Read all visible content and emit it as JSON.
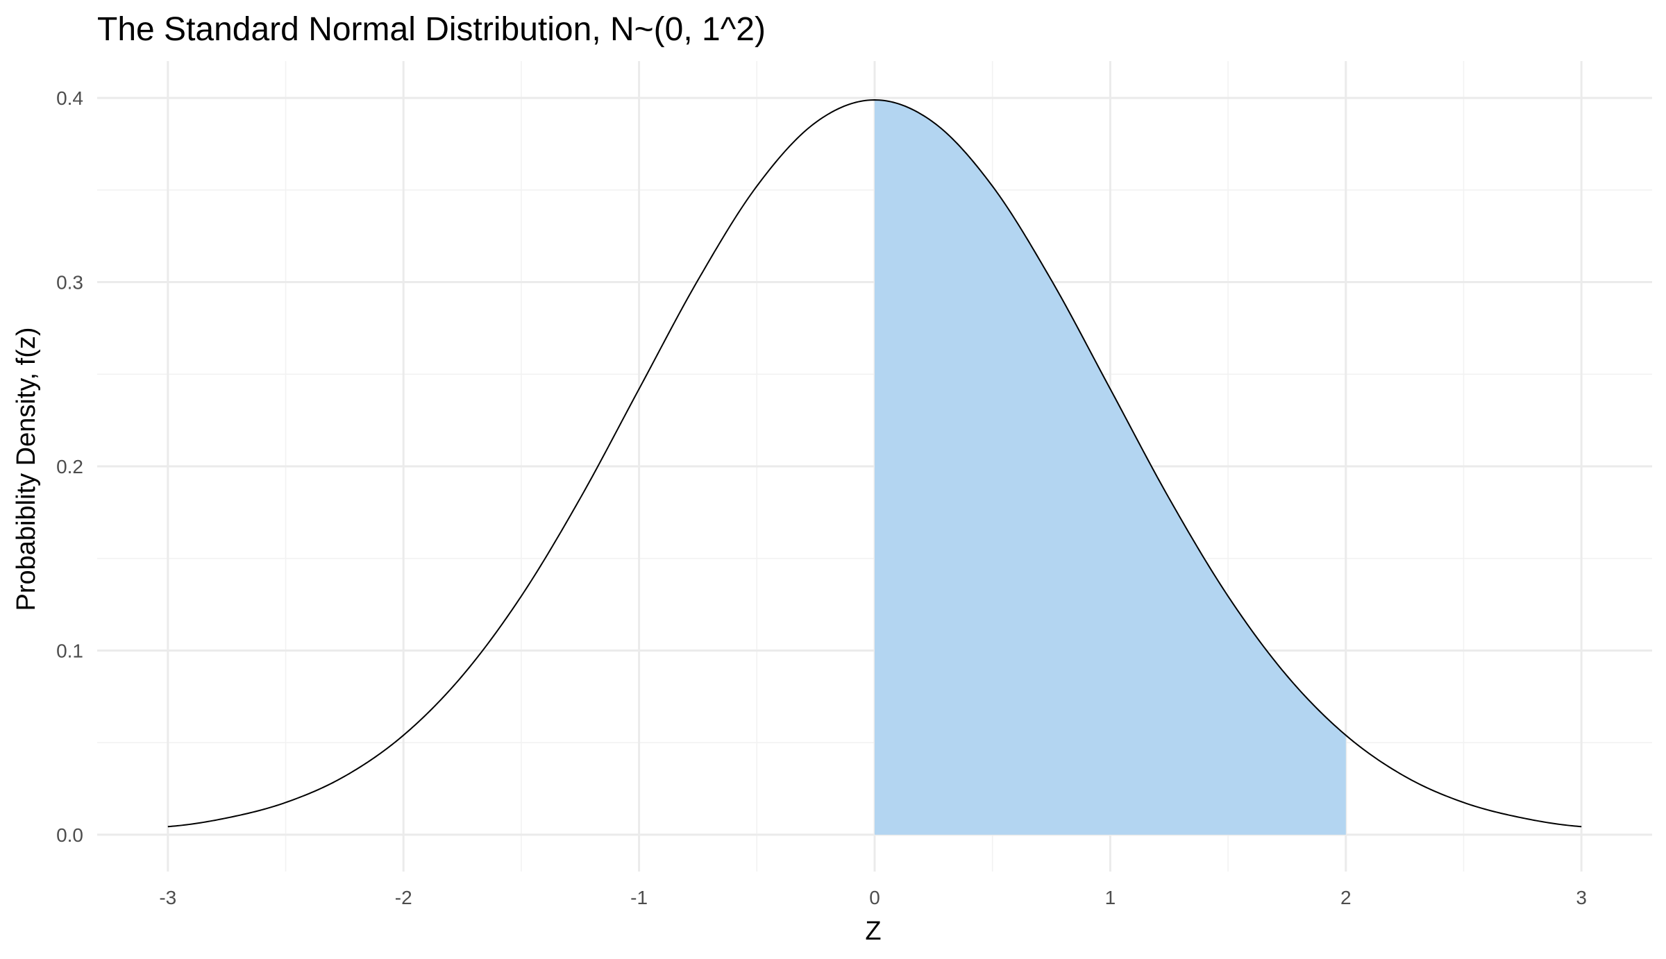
{
  "chart_data": {
    "type": "area",
    "title": "The Standard Normal Distribution, N~(0, 1^2)",
    "xlabel": "Z",
    "ylabel": "Probabiblity Density, f(z)",
    "xlim": [
      -3.3,
      3.3
    ],
    "ylim": [
      -0.02,
      0.42
    ],
    "x_ticks": [
      -3,
      -2,
      -1,
      0,
      1,
      2,
      3
    ],
    "x_tick_labels": [
      "-3",
      "-2",
      "-1",
      "0",
      "1",
      "2",
      "3"
    ],
    "x_minor_ticks": [
      -2.5,
      -1.5,
      -0.5,
      0.5,
      1.5,
      2.5
    ],
    "y_ticks": [
      0.0,
      0.1,
      0.2,
      0.3,
      0.4
    ],
    "y_tick_labels": [
      "0.0",
      "0.1",
      "0.2",
      "0.3",
      "0.4"
    ],
    "y_minor_ticks": [
      0.05,
      0.15,
      0.25,
      0.35
    ],
    "grid": true,
    "series": [
      {
        "x": [
          -3.0,
          -2.75,
          -2.5,
          -2.25,
          -2.0,
          -1.75,
          -1.5,
          -1.25,
          -1.0,
          -0.75,
          -0.5,
          -0.25,
          0.0,
          0.25,
          0.5,
          0.75,
          1.0,
          1.25,
          1.5,
          1.75,
          2.0,
          2.25,
          2.5,
          2.75,
          3.0
        ],
        "y": [
          0.0044,
          0.0091,
          0.0175,
          0.0317,
          0.054,
          0.0863,
          0.1295,
          0.1826,
          0.242,
          0.3011,
          0.3521,
          0.3867,
          0.3989,
          0.3867,
          0.3521,
          0.3011,
          0.242,
          0.1826,
          0.1295,
          0.0863,
          0.054,
          0.0317,
          0.0175,
          0.0091,
          0.0044
        ],
        "color": "#000000"
      }
    ],
    "shaded_region": {
      "from": 0,
      "to": 2,
      "color": "#b3d5f1"
    }
  }
}
